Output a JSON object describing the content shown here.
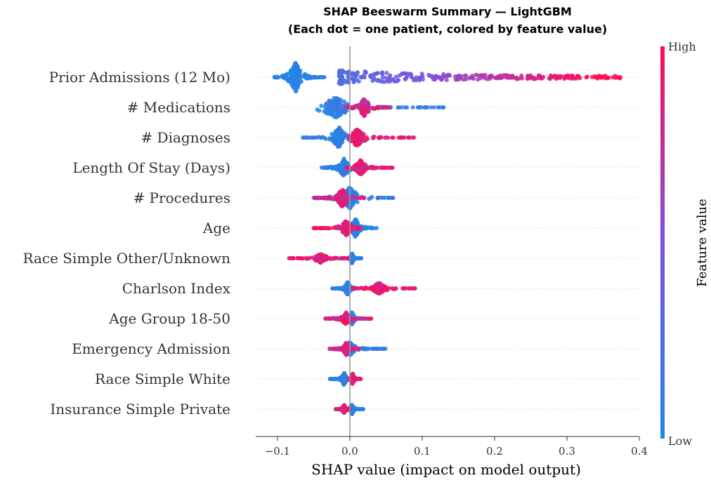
{
  "chart_data": {
    "type": "scatter",
    "subtype": "shap-beeswarm",
    "title": "SHAP Beeswarm Summary — LightGBM",
    "subtitle": "(Each dot = one patient, colored by feature value)",
    "xlabel": "SHAP value (impact on model output)",
    "xlim": [
      -0.13,
      0.4
    ],
    "xticks": [
      -0.1,
      0.0,
      0.1,
      0.2,
      0.3,
      0.4
    ],
    "xtick_labels": [
      "−0.1",
      "0.0",
      "0.1",
      "0.2",
      "0.3",
      "0.4"
    ],
    "zero_line": true,
    "grid": false,
    "colorbar": {
      "title": "Feature value",
      "high_label": "High",
      "low_label": "Low",
      "low_color": "#1e88e5",
      "mid_color": "#7c52e0",
      "high_color": "#ff0d57"
    },
    "features": [
      {
        "name": "Prior Admissions (12 Mo)",
        "low_range": [
          -0.105,
          -0.035
        ],
        "low_core": -0.075,
        "high_range": [
          -0.015,
          0.375
        ],
        "high_core": 0.03,
        "core_height": 1.0,
        "pattern": "low_left_high_right_long"
      },
      {
        "name": "# Medications",
        "low_range": [
          -0.05,
          0.135
        ],
        "low_core": -0.02,
        "high_range": [
          -0.005,
          0.06
        ],
        "high_core": 0.02,
        "core_height": 0.7,
        "pattern": "mixed_blue_tail_right"
      },
      {
        "name": "# Diagnoses",
        "low_range": [
          -0.065,
          0.02
        ],
        "low_core": -0.015,
        "high_range": [
          -0.005,
          0.09
        ],
        "high_core": 0.01,
        "core_height": 0.7,
        "pattern": "low_left_high_right"
      },
      {
        "name": "Length Of Stay (Days)",
        "low_range": [
          -0.04,
          0.03
        ],
        "low_core": -0.008,
        "high_range": [
          -0.005,
          0.06
        ],
        "high_core": 0.015,
        "core_height": 0.6,
        "pattern": "low_left_high_right"
      },
      {
        "name": "# Procedures",
        "low_range": [
          -0.05,
          0.06
        ],
        "low_core": 0.0,
        "high_range": [
          -0.05,
          0.02
        ],
        "high_core": -0.01,
        "core_height": 0.7,
        "pattern": "mixed"
      },
      {
        "name": "Age",
        "low_range": [
          -0.02,
          0.04
        ],
        "low_core": 0.008,
        "high_range": [
          -0.05,
          0.02
        ],
        "high_core": -0.005,
        "core_height": 0.6,
        "pattern": "high_left_low_right"
      },
      {
        "name": "Race Simple Other/Unknown",
        "low_range": [
          -0.002,
          0.016
        ],
        "low_core": 0.003,
        "high_range": [
          -0.085,
          -0.002
        ],
        "high_core": -0.04,
        "core_height": 0.35,
        "pattern": "high_left_low_right"
      },
      {
        "name": "Charlson Index",
        "low_range": [
          -0.025,
          0.01
        ],
        "low_core": -0.003,
        "high_range": [
          0.003,
          0.092
        ],
        "high_core": 0.04,
        "core_height": 0.45,
        "pattern": "low_left_high_right"
      },
      {
        "name": "Age Group 18-50",
        "low_range": [
          -0.005,
          0.02
        ],
        "low_core": 0.003,
        "high_range": [
          -0.035,
          0.03
        ],
        "high_core": -0.005,
        "core_height": 0.45,
        "pattern": "mixed"
      },
      {
        "name": "Emergency Admission",
        "low_range": [
          -0.02,
          0.05
        ],
        "low_core": 0.0,
        "high_range": [
          -0.028,
          0.012
        ],
        "high_core": -0.005,
        "core_height": 0.45,
        "pattern": "mixed"
      },
      {
        "name": "Race Simple White",
        "low_range": [
          -0.028,
          -0.001
        ],
        "low_core": -0.008,
        "high_range": [
          -0.002,
          0.016
        ],
        "high_core": 0.004,
        "core_height": 0.45,
        "pattern": "low_left_high_right"
      },
      {
        "name": "Insurance Simple Private",
        "low_range": [
          -0.002,
          0.02
        ],
        "low_core": 0.003,
        "high_range": [
          -0.02,
          0.0
        ],
        "high_core": -0.008,
        "core_height": 0.35,
        "pattern": "high_left_low_right"
      }
    ]
  }
}
